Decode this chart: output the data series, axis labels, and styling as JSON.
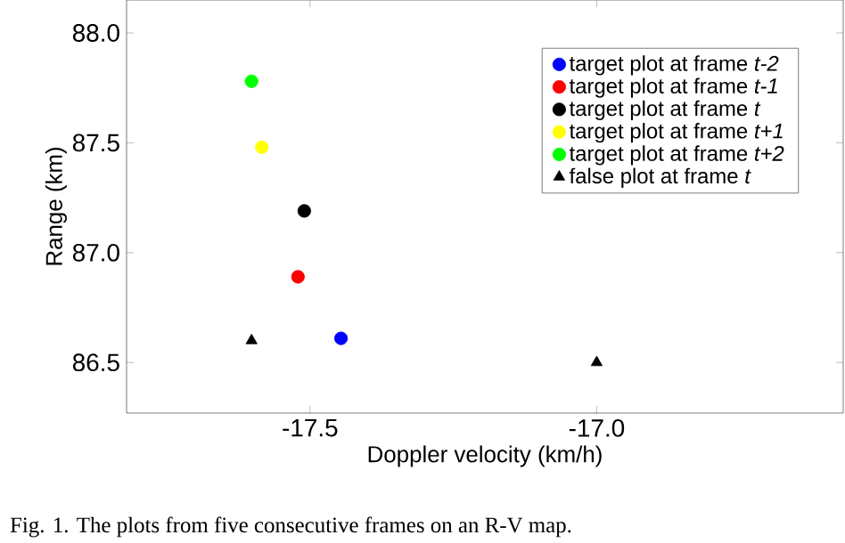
{
  "chart_data": {
    "type": "scatter",
    "xlabel": "Doppler velocity (km/h)",
    "ylabel": "Range (km)",
    "xlim": [
      -17.82,
      -16.57
    ],
    "ylim": [
      86.27,
      88.15
    ],
    "xticks": [
      -17.5,
      {
        "value": -17.0,
        "label": "-17.0"
      }
    ],
    "yticks": [
      86.5,
      {
        "value": 87.0,
        "label": "87.0"
      },
      87.5,
      {
        "value": 88.0,
        "label": "88.0"
      }
    ],
    "legend": "top right",
    "series": [
      {
        "name": "target plot at frame *t-2*",
        "color": "#0000ff",
        "marker": "circle",
        "x": [
          -17.446
        ],
        "values": [
          86.61
        ]
      },
      {
        "name": "target plot at frame *t-1*",
        "color": "#ff0000",
        "marker": "circle",
        "x": [
          -17.521
        ],
        "values": [
          86.89
        ]
      },
      {
        "name": "target plot at frame *t*",
        "color": "#000000",
        "marker": "circle",
        "x": [
          -17.51
        ],
        "values": [
          87.19
        ]
      },
      {
        "name": "target plot at frame *t+1*",
        "color": "#ffff00",
        "marker": "circle",
        "x": [
          -17.584
        ],
        "values": [
          87.48
        ]
      },
      {
        "name": "target plot at frame *t+2*",
        "color": "#00ff00",
        "marker": "circle",
        "x": [
          -17.602
        ],
        "values": [
          87.78
        ]
      },
      {
        "name": "false plot at frame *t*",
        "color": "#000000",
        "marker": "triangle",
        "x": [
          -17.602,
          -17.0
        ],
        "values": [
          86.6,
          86.5
        ]
      }
    ],
    "annotations": [
      "Fig. 1.   The plots from five consecutive frames on an R-V map."
    ]
  }
}
